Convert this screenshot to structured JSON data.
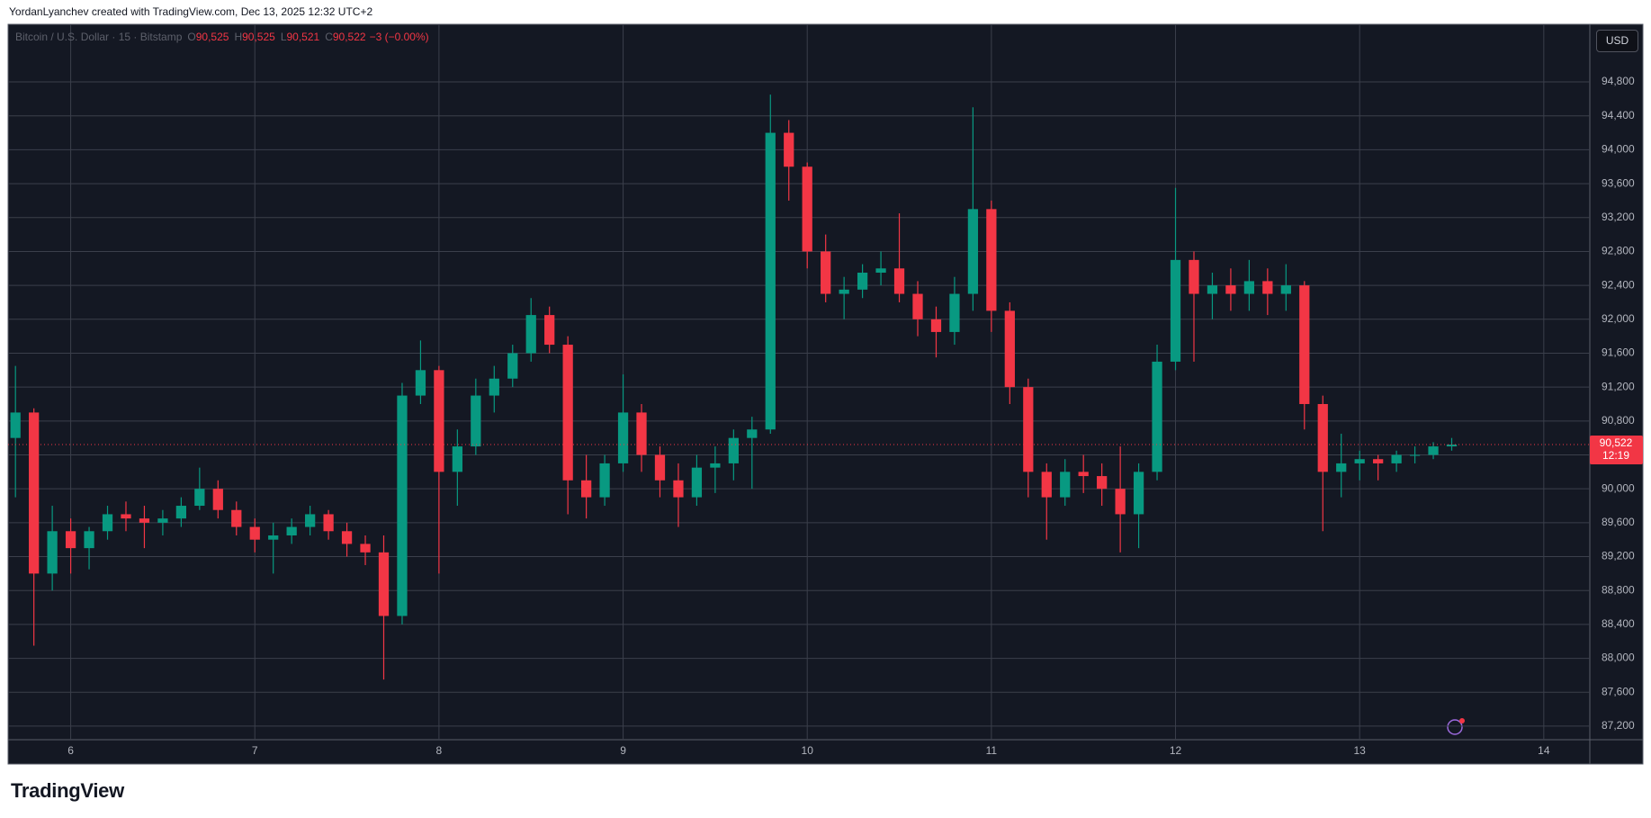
{
  "chart_data": {
    "type": "candlestick",
    "attribution": "YordanLyanchev created with TradingView.com, Dec 13, 2025 12:32 UTC+2",
    "symbol": "Bitcoin / U.S. Dollar · 15 · Bitstamp",
    "ohlc_legend": [
      {
        "key": "O",
        "text": "90,525"
      },
      {
        "key": "H",
        "text": "90,525"
      },
      {
        "key": "L",
        "text": "90,521"
      },
      {
        "key": "C",
        "text": "90,522"
      }
    ],
    "change": "−3 (−0.00%)",
    "currency": "USD",
    "brand": "TradingView",
    "last_price": {
      "value": 90522,
      "label": "90,522"
    },
    "countdown": "12:19",
    "colors": {
      "up": "#089981",
      "down": "#f23645"
    },
    "grid": true,
    "xlim": [
      5.66,
      14.25
    ],
    "ylim": [
      87040,
      95480
    ],
    "xticks": [
      6,
      7,
      8,
      9,
      10,
      11,
      12,
      13,
      14
    ],
    "yticks": [
      {
        "value": 87200,
        "label": "87,200"
      },
      {
        "value": 87600,
        "label": "87,600"
      },
      {
        "value": 88000,
        "label": "88,000"
      },
      {
        "value": 88400,
        "label": "88,400"
      },
      {
        "value": 88800,
        "label": "88,800"
      },
      {
        "value": 89200,
        "label": "89,200"
      },
      {
        "value": 89600,
        "label": "89,600"
      },
      {
        "value": 90000,
        "label": "90,000"
      },
      {
        "value": 90400,
        "label": "90,400"
      },
      {
        "value": 90800,
        "label": "90,800"
      },
      {
        "value": 91200,
        "label": "91,200"
      },
      {
        "value": 91600,
        "label": "91,600"
      },
      {
        "value": 92000,
        "label": "92,000"
      },
      {
        "value": 92400,
        "label": "92,400"
      },
      {
        "value": 92800,
        "label": "92,800"
      },
      {
        "value": 93200,
        "label": "93,200"
      },
      {
        "value": 93600,
        "label": "93,600"
      },
      {
        "value": 94000,
        "label": "94,000"
      },
      {
        "value": 94400,
        "label": "94,400"
      },
      {
        "value": 94800,
        "label": "94,800"
      }
    ],
    "x": [
      5.7,
      5.8,
      5.9,
      6.0,
      6.1,
      6.2,
      6.3,
      6.4,
      6.5,
      6.6,
      6.7,
      6.8,
      6.9,
      7.0,
      7.1,
      7.2,
      7.3,
      7.4,
      7.5,
      7.6,
      7.7,
      7.8,
      7.9,
      8.0,
      8.1,
      8.2,
      8.3,
      8.4,
      8.5,
      8.6,
      8.7,
      8.8,
      8.9,
      9.0,
      9.1,
      9.2,
      9.3,
      9.4,
      9.5,
      9.6,
      9.7,
      9.8,
      9.9,
      10.0,
      10.1,
      10.2,
      10.3,
      10.4,
      10.5,
      10.6,
      10.7,
      10.8,
      10.9,
      11.0,
      11.1,
      11.2,
      11.3,
      11.4,
      11.5,
      11.6,
      11.7,
      11.8,
      11.9,
      12.0,
      12.1,
      12.2,
      12.3,
      12.4,
      12.5,
      12.6,
      12.7,
      12.8,
      12.9,
      13.0,
      13.1,
      13.2,
      13.3,
      13.4,
      13.5
    ],
    "open": [
      90600,
      90900,
      89000,
      89500,
      89300,
      89500,
      89700,
      89650,
      89600,
      89650,
      89800,
      90000,
      89750,
      89550,
      89400,
      89450,
      89550,
      89700,
      89500,
      89350,
      89250,
      88500,
      91100,
      91400,
      90200,
      90500,
      91100,
      91300,
      91600,
      92050,
      91700,
      90100,
      89900,
      90300,
      90900,
      90400,
      90100,
      89900,
      90250,
      90300,
      90600,
      90700,
      94200,
      93800,
      92800,
      92300,
      92350,
      92550,
      92600,
      92300,
      92000,
      91850,
      92300,
      93300,
      92100,
      91200,
      90200,
      89900,
      90200,
      90150,
      90000,
      89700,
      90200,
      91500,
      92700,
      92300,
      92400,
      92300,
      92450,
      92300,
      92400,
      91000,
      90200,
      90300,
      90350,
      90300,
      90400,
      90400,
      90500
    ],
    "high": [
      91450,
      90950,
      89800,
      89650,
      89550,
      89800,
      89850,
      89800,
      89750,
      89900,
      90250,
      90100,
      89850,
      89650,
      89600,
      89650,
      89800,
      89750,
      89600,
      89450,
      89450,
      91250,
      91750,
      91450,
      90700,
      91300,
      91450,
      91700,
      92250,
      92150,
      91800,
      90400,
      90400,
      91350,
      91000,
      90500,
      90300,
      90400,
      90500,
      90700,
      90850,
      94650,
      94350,
      93850,
      93000,
      92500,
      92650,
      92800,
      93250,
      92450,
      92150,
      92500,
      94500,
      93400,
      92200,
      91300,
      90300,
      90350,
      90400,
      90300,
      90500,
      90300,
      91700,
      93550,
      92800,
      92550,
      92600,
      92700,
      92600,
      92650,
      92450,
      91100,
      90650,
      90450,
      90400,
      90450,
      90500,
      90550,
      90600
    ],
    "low": [
      89900,
      88150,
      88800,
      89000,
      89050,
      89400,
      89500,
      89300,
      89450,
      89550,
      89750,
      89650,
      89450,
      89250,
      89000,
      89350,
      89450,
      89400,
      89200,
      89100,
      87750,
      88400,
      91000,
      89000,
      89800,
      90400,
      90900,
      91200,
      91500,
      91600,
      89700,
      89650,
      89800,
      90200,
      90200,
      89900,
      89550,
      89800,
      89950,
      90100,
      90000,
      90650,
      93400,
      92600,
      92200,
      92000,
      92250,
      92400,
      92200,
      91800,
      91550,
      91700,
      92100,
      91850,
      91000,
      89900,
      89400,
      89800,
      89950,
      89800,
      89250,
      89300,
      90100,
      91400,
      91500,
      92000,
      92100,
      92100,
      92050,
      92100,
      90700,
      89500,
      89900,
      90100,
      90100,
      90200,
      90300,
      90350,
      90450
    ],
    "close": [
      90900,
      89000,
      89500,
      89300,
      89500,
      89700,
      89650,
      89600,
      89650,
      89800,
      90000,
      89750,
      89550,
      89400,
      89450,
      89550,
      89700,
      89500,
      89350,
      89250,
      88500,
      91100,
      91400,
      90200,
      90500,
      91100,
      91300,
      91600,
      92050,
      91700,
      90100,
      89900,
      90300,
      90900,
      90400,
      90100,
      89900,
      90250,
      90300,
      90600,
      90700,
      94200,
      93800,
      92800,
      92300,
      92350,
      92550,
      92600,
      92300,
      92000,
      91850,
      92300,
      93300,
      92100,
      91200,
      90200,
      89900,
      90200,
      90150,
      90000,
      89700,
      90200,
      91500,
      92700,
      92300,
      92400,
      92300,
      92450,
      92300,
      92400,
      91000,
      90200,
      90300,
      90350,
      90300,
      90400,
      90400,
      90500,
      90522
    ]
  }
}
